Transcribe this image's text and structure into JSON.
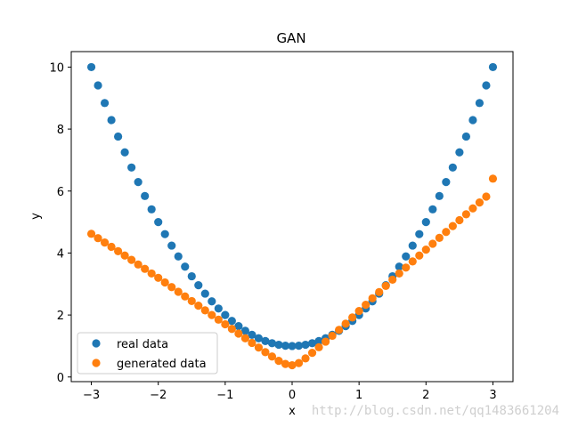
{
  "chart_data": {
    "type": "scatter",
    "title": "GAN",
    "xlabel": "x",
    "ylabel": "y",
    "xlim": [
      -3.3,
      3.3
    ],
    "ylim": [
      -0.15,
      10.5
    ],
    "x_ticks": [
      -3,
      -2,
      -1,
      0,
      1,
      2,
      3
    ],
    "y_ticks": [
      0,
      2,
      4,
      6,
      8,
      10
    ],
    "grid": false,
    "legend_position": "lower-left",
    "colors": {
      "real data": "#1f77b4",
      "generated data": "#ff7f0e"
    },
    "series": [
      {
        "name": "real data",
        "marker": "circle",
        "x": [
          -3.0,
          -2.9,
          -2.8,
          -2.7,
          -2.6,
          -2.5,
          -2.4,
          -2.3,
          -2.2,
          -2.1,
          -2.0,
          -1.9,
          -1.8,
          -1.7,
          -1.6,
          -1.5,
          -1.4,
          -1.3,
          -1.2,
          -1.1,
          -1.0,
          -0.9,
          -0.8,
          -0.7,
          -0.6,
          -0.5,
          -0.4,
          -0.3,
          -0.2,
          -0.1,
          0.0,
          0.1,
          0.2,
          0.3,
          0.4,
          0.5,
          0.6,
          0.7,
          0.8,
          0.9,
          1.0,
          1.1,
          1.2,
          1.3,
          1.4,
          1.5,
          1.6,
          1.7,
          1.8,
          1.9,
          2.0,
          2.1,
          2.2,
          2.3,
          2.4,
          2.5,
          2.6,
          2.7,
          2.8,
          2.9,
          3.0
        ],
        "y": [
          10.0,
          9.41,
          8.84,
          8.29,
          7.76,
          7.25,
          6.76,
          6.29,
          5.84,
          5.41,
          5.0,
          4.61,
          4.24,
          3.89,
          3.56,
          3.25,
          2.96,
          2.69,
          2.44,
          2.21,
          2.0,
          1.81,
          1.64,
          1.49,
          1.36,
          1.25,
          1.16,
          1.09,
          1.04,
          1.01,
          1.0,
          1.01,
          1.04,
          1.09,
          1.16,
          1.25,
          1.36,
          1.49,
          1.64,
          1.81,
          2.0,
          2.21,
          2.44,
          2.69,
          2.96,
          3.25,
          3.56,
          3.89,
          4.24,
          4.61,
          5.0,
          5.41,
          5.84,
          6.29,
          6.76,
          7.25,
          7.76,
          8.29,
          8.84,
          9.41,
          10.0
        ]
      },
      {
        "name": "generated data",
        "marker": "circle",
        "x": [
          -3.0,
          -2.9,
          -2.8,
          -2.7,
          -2.6,
          -2.5,
          -2.4,
          -2.3,
          -2.2,
          -2.1,
          -2.0,
          -1.9,
          -1.8,
          -1.7,
          -1.6,
          -1.5,
          -1.4,
          -1.3,
          -1.2,
          -1.1,
          -1.0,
          -0.9,
          -0.8,
          -0.7,
          -0.6,
          -0.5,
          -0.4,
          -0.3,
          -0.2,
          -0.1,
          0.0,
          0.1,
          0.2,
          0.3,
          0.4,
          0.5,
          0.6,
          0.7,
          0.8,
          0.9,
          1.0,
          1.1,
          1.2,
          1.3,
          1.4,
          1.5,
          1.6,
          1.7,
          1.8,
          1.9,
          2.0,
          2.1,
          2.2,
          2.3,
          2.4,
          2.5,
          2.6,
          2.7,
          2.8,
          2.9,
          3.0
        ],
        "y": [
          4.62,
          4.48,
          4.34,
          4.2,
          4.06,
          3.92,
          3.78,
          3.63,
          3.49,
          3.34,
          3.2,
          3.05,
          2.9,
          2.75,
          2.6,
          2.45,
          2.3,
          2.15,
          2.0,
          1.85,
          1.7,
          1.55,
          1.4,
          1.25,
          1.1,
          0.95,
          0.8,
          0.66,
          0.52,
          0.42,
          0.38,
          0.45,
          0.6,
          0.78,
          0.96,
          1.14,
          1.33,
          1.52,
          1.72,
          1.92,
          2.13,
          2.33,
          2.54,
          2.74,
          2.94,
          3.14,
          3.34,
          3.53,
          3.73,
          3.92,
          4.11,
          4.3,
          4.49,
          4.68,
          4.87,
          5.06,
          5.25,
          5.44,
          5.63,
          5.82,
          6.4
        ]
      }
    ]
  },
  "watermark": "http://blog.csdn.net/qq1483661204"
}
